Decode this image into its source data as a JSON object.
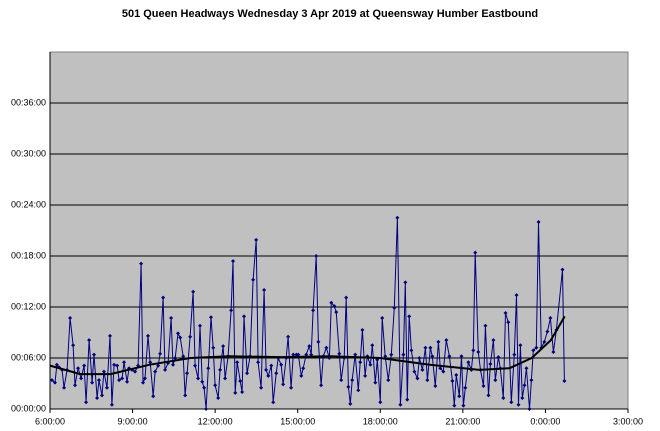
{
  "chart_data": {
    "type": "line",
    "title": "501 Queen Headways Wednesday 3 Apr 2019 at Queensway Humber Eastbound",
    "xlim": [
      6,
      27
    ],
    "ylim": [
      0,
      42
    ],
    "xticks": [
      {
        "value": 6,
        "label": "6:00:00"
      },
      {
        "value": 9,
        "label": "9:00:00"
      },
      {
        "value": 12,
        "label": "12:00:00"
      },
      {
        "value": 15,
        "label": "15:00:00"
      },
      {
        "value": 18,
        "label": "18:00:00"
      },
      {
        "value": 21,
        "label": "21:00:00"
      },
      {
        "value": 24,
        "label": "0:00:00"
      },
      {
        "value": 27,
        "label": "3:00:00"
      }
    ],
    "yticks": [
      {
        "value": 0,
        "label": "00:00:00"
      },
      {
        "value": 6,
        "label": "00:06:00"
      },
      {
        "value": 12,
        "label": "00:12:00"
      },
      {
        "value": 18,
        "label": "00:18:00"
      },
      {
        "value": 24,
        "label": "00:24:00"
      },
      {
        "value": 30,
        "label": "00:30:00"
      },
      {
        "value": 36,
        "label": "00:36:00"
      }
    ],
    "grid": true,
    "background": "#c0c0c0",
    "series": [
      {
        "color": "#000080",
        "markers": true,
        "x": [
          6.07,
          6.18,
          6.25,
          6.33,
          6.44,
          6.51,
          6.62,
          6.73,
          6.84,
          6.91,
          7.02,
          7.13,
          7.24,
          7.31,
          7.42,
          7.53,
          7.6,
          7.71,
          7.78,
          7.89,
          7.96,
          8.07,
          8.18,
          8.25,
          8.33,
          8.44,
          8.51,
          8.62,
          8.69,
          8.8,
          8.87,
          8.98,
          9.09,
          9.2,
          9.31,
          9.38,
          9.45,
          9.56,
          9.64,
          9.75,
          9.82,
          9.93,
          10.0,
          10.11,
          10.18,
          10.29,
          10.4,
          10.47,
          10.55,
          10.65,
          10.73,
          10.84,
          10.91,
          10.98,
          11.09,
          11.2,
          11.27,
          11.38,
          11.45,
          11.53,
          11.6,
          11.67,
          11.75,
          11.85,
          11.93,
          12.0,
          12.11,
          12.18,
          12.29,
          12.36,
          12.47,
          12.58,
          12.65,
          12.73,
          12.8,
          12.91,
          12.98,
          13.05,
          13.16,
          13.27,
          13.38,
          13.49,
          13.56,
          13.67,
          13.78,
          13.85,
          13.93,
          14.04,
          14.11,
          14.22,
          14.29,
          14.4,
          14.47,
          14.58,
          14.65,
          14.76,
          14.84,
          14.95,
          15.02,
          15.13,
          15.2,
          15.31,
          15.42,
          15.49,
          15.56,
          15.67,
          15.75,
          15.85,
          15.93,
          16.04,
          16.15,
          16.22,
          16.33,
          16.4,
          16.51,
          16.58,
          16.69,
          16.76,
          16.84,
          16.91,
          16.98,
          17.09,
          17.2,
          17.27,
          17.35,
          17.45,
          17.53,
          17.64,
          17.71,
          17.82,
          17.89,
          18.0,
          18.07,
          18.18,
          18.29,
          18.4,
          18.51,
          18.62,
          18.73,
          18.84,
          18.91,
          18.98,
          19.05,
          19.13,
          19.24,
          19.35,
          19.42,
          19.53,
          19.64,
          19.71,
          19.82,
          19.89,
          20.0,
          20.11,
          20.18,
          20.29,
          20.4,
          20.51,
          20.62,
          20.69,
          20.76,
          20.87,
          20.95,
          21.02,
          21.09,
          21.2,
          21.31,
          21.38,
          21.45,
          21.56,
          21.64,
          21.75,
          21.82,
          21.93,
          22.0,
          22.11,
          22.18,
          22.29,
          22.36,
          22.47,
          22.55,
          22.65,
          22.76,
          22.87,
          22.95,
          23.02,
          23.09,
          23.16,
          23.24,
          23.31,
          23.42,
          23.49,
          23.56,
          23.67,
          23.75,
          23.85,
          23.96,
          24.07,
          24.18,
          24.29,
          24.4,
          24.62,
          24.69
        ],
        "values": [
          3.4,
          3.1,
          5.2,
          4.9,
          4.6,
          2.5,
          4.6,
          10.7,
          7.5,
          2.8,
          4.8,
          3.6,
          5.1,
          0.8,
          8.1,
          3.1,
          6.4,
          1.3,
          3.4,
          1.6,
          4.4,
          2.5,
          8.6,
          0.5,
          5.2,
          5.1,
          3.4,
          3.6,
          5.5,
          3.2,
          4.8,
          4.6,
          4.4,
          5.1,
          17.1,
          3.1,
          3.6,
          8.6,
          5.5,
          1.5,
          4.4,
          5.1,
          6.5,
          13.1,
          4.6,
          5.4,
          10.7,
          5.2,
          6.0,
          8.9,
          8.4,
          6.2,
          1.6,
          4.2,
          8.5,
          13.8,
          5.1,
          3.6,
          9.8,
          3.2,
          2.5,
          0,
          4.8,
          10.8,
          7.2,
          2.8,
          1.3,
          4.6,
          7.4,
          3.6,
          6.2,
          11.6,
          17.4,
          1.9,
          5.5,
          3.3,
          2.0,
          10.9,
          4.2,
          6.2,
          15.2,
          19.9,
          5.5,
          2.5,
          14.0,
          4.6,
          3.9,
          5.1,
          0.8,
          4.2,
          6.0,
          5.2,
          2.9,
          6.0,
          8.5,
          2.5,
          6.4,
          6.4,
          6.4,
          3.9,
          4.8,
          6.4,
          7.4,
          6.4,
          11.6,
          18.0,
          7.9,
          2.8,
          6.2,
          7.2,
          6.0,
          12.5,
          12.1,
          11.4,
          6.5,
          3.4,
          6.0,
          13.1,
          2.6,
          0.6,
          3.4,
          6.4,
          2.2,
          5.5,
          9.3,
          3.9,
          6.2,
          5.2,
          7.5,
          3.1,
          5.8,
          0.8,
          10.7,
          6.2,
          3.4,
          6.4,
          11.9,
          22.5,
          0.5,
          6.4,
          14.9,
          1.1,
          10.9,
          6.9,
          4.4,
          3.6,
          6.0,
          4.6,
          7.2,
          3.4,
          7.2,
          6.2,
          2.7,
          7.9,
          4.8,
          4.4,
          8.1,
          6.2,
          3.3,
          0.4,
          4.0,
          1.5,
          6.2,
          0.4,
          2.5,
          5.5,
          4.6,
          6.9,
          18.4,
          6.7,
          4.6,
          2.7,
          9.8,
          1.6,
          5.3,
          8.1,
          3.4,
          6.1,
          4.8,
          1.3,
          11.3,
          10.2,
          0.8,
          6.4,
          13.4,
          0.5,
          7.5,
          1.3,
          2.8,
          4.8,
          0,
          3.4,
          6.9,
          7.2,
          22.0,
          7.2,
          7.9,
          9.1,
          10.7,
          6.7,
          9.3,
          16.4,
          3.3
        ]
      },
      {
        "color": "#000000",
        "markers": false,
        "x": [
          6.0,
          7.1,
          8.2,
          9.6,
          11.1,
          12.5,
          14.4,
          16.2,
          18.0,
          19.8,
          21.6,
          22.7,
          23.5,
          24.2,
          24.7
        ],
        "values": [
          5.1,
          4.1,
          4.1,
          5.2,
          6.0,
          6.2,
          6.1,
          6.2,
          6.0,
          5.2,
          4.6,
          4.8,
          6.0,
          8.1,
          10.9
        ]
      }
    ]
  }
}
